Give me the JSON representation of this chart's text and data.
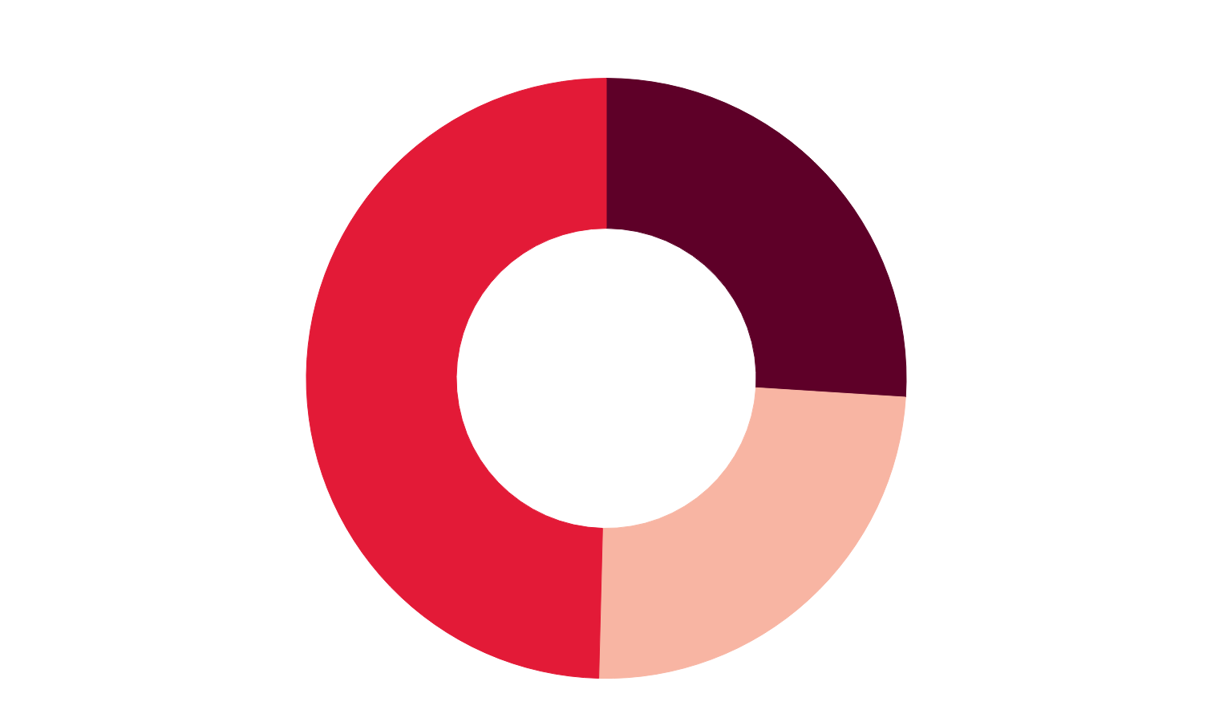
{
  "chart_data": {
    "type": "donut",
    "categories": [
      null,
      null,
      null
    ],
    "values": [
      26,
      24.4,
      49.6
    ],
    "colors": [
      "#5e0028",
      "#f8b5a3",
      "#e31a37"
    ]
  }
}
